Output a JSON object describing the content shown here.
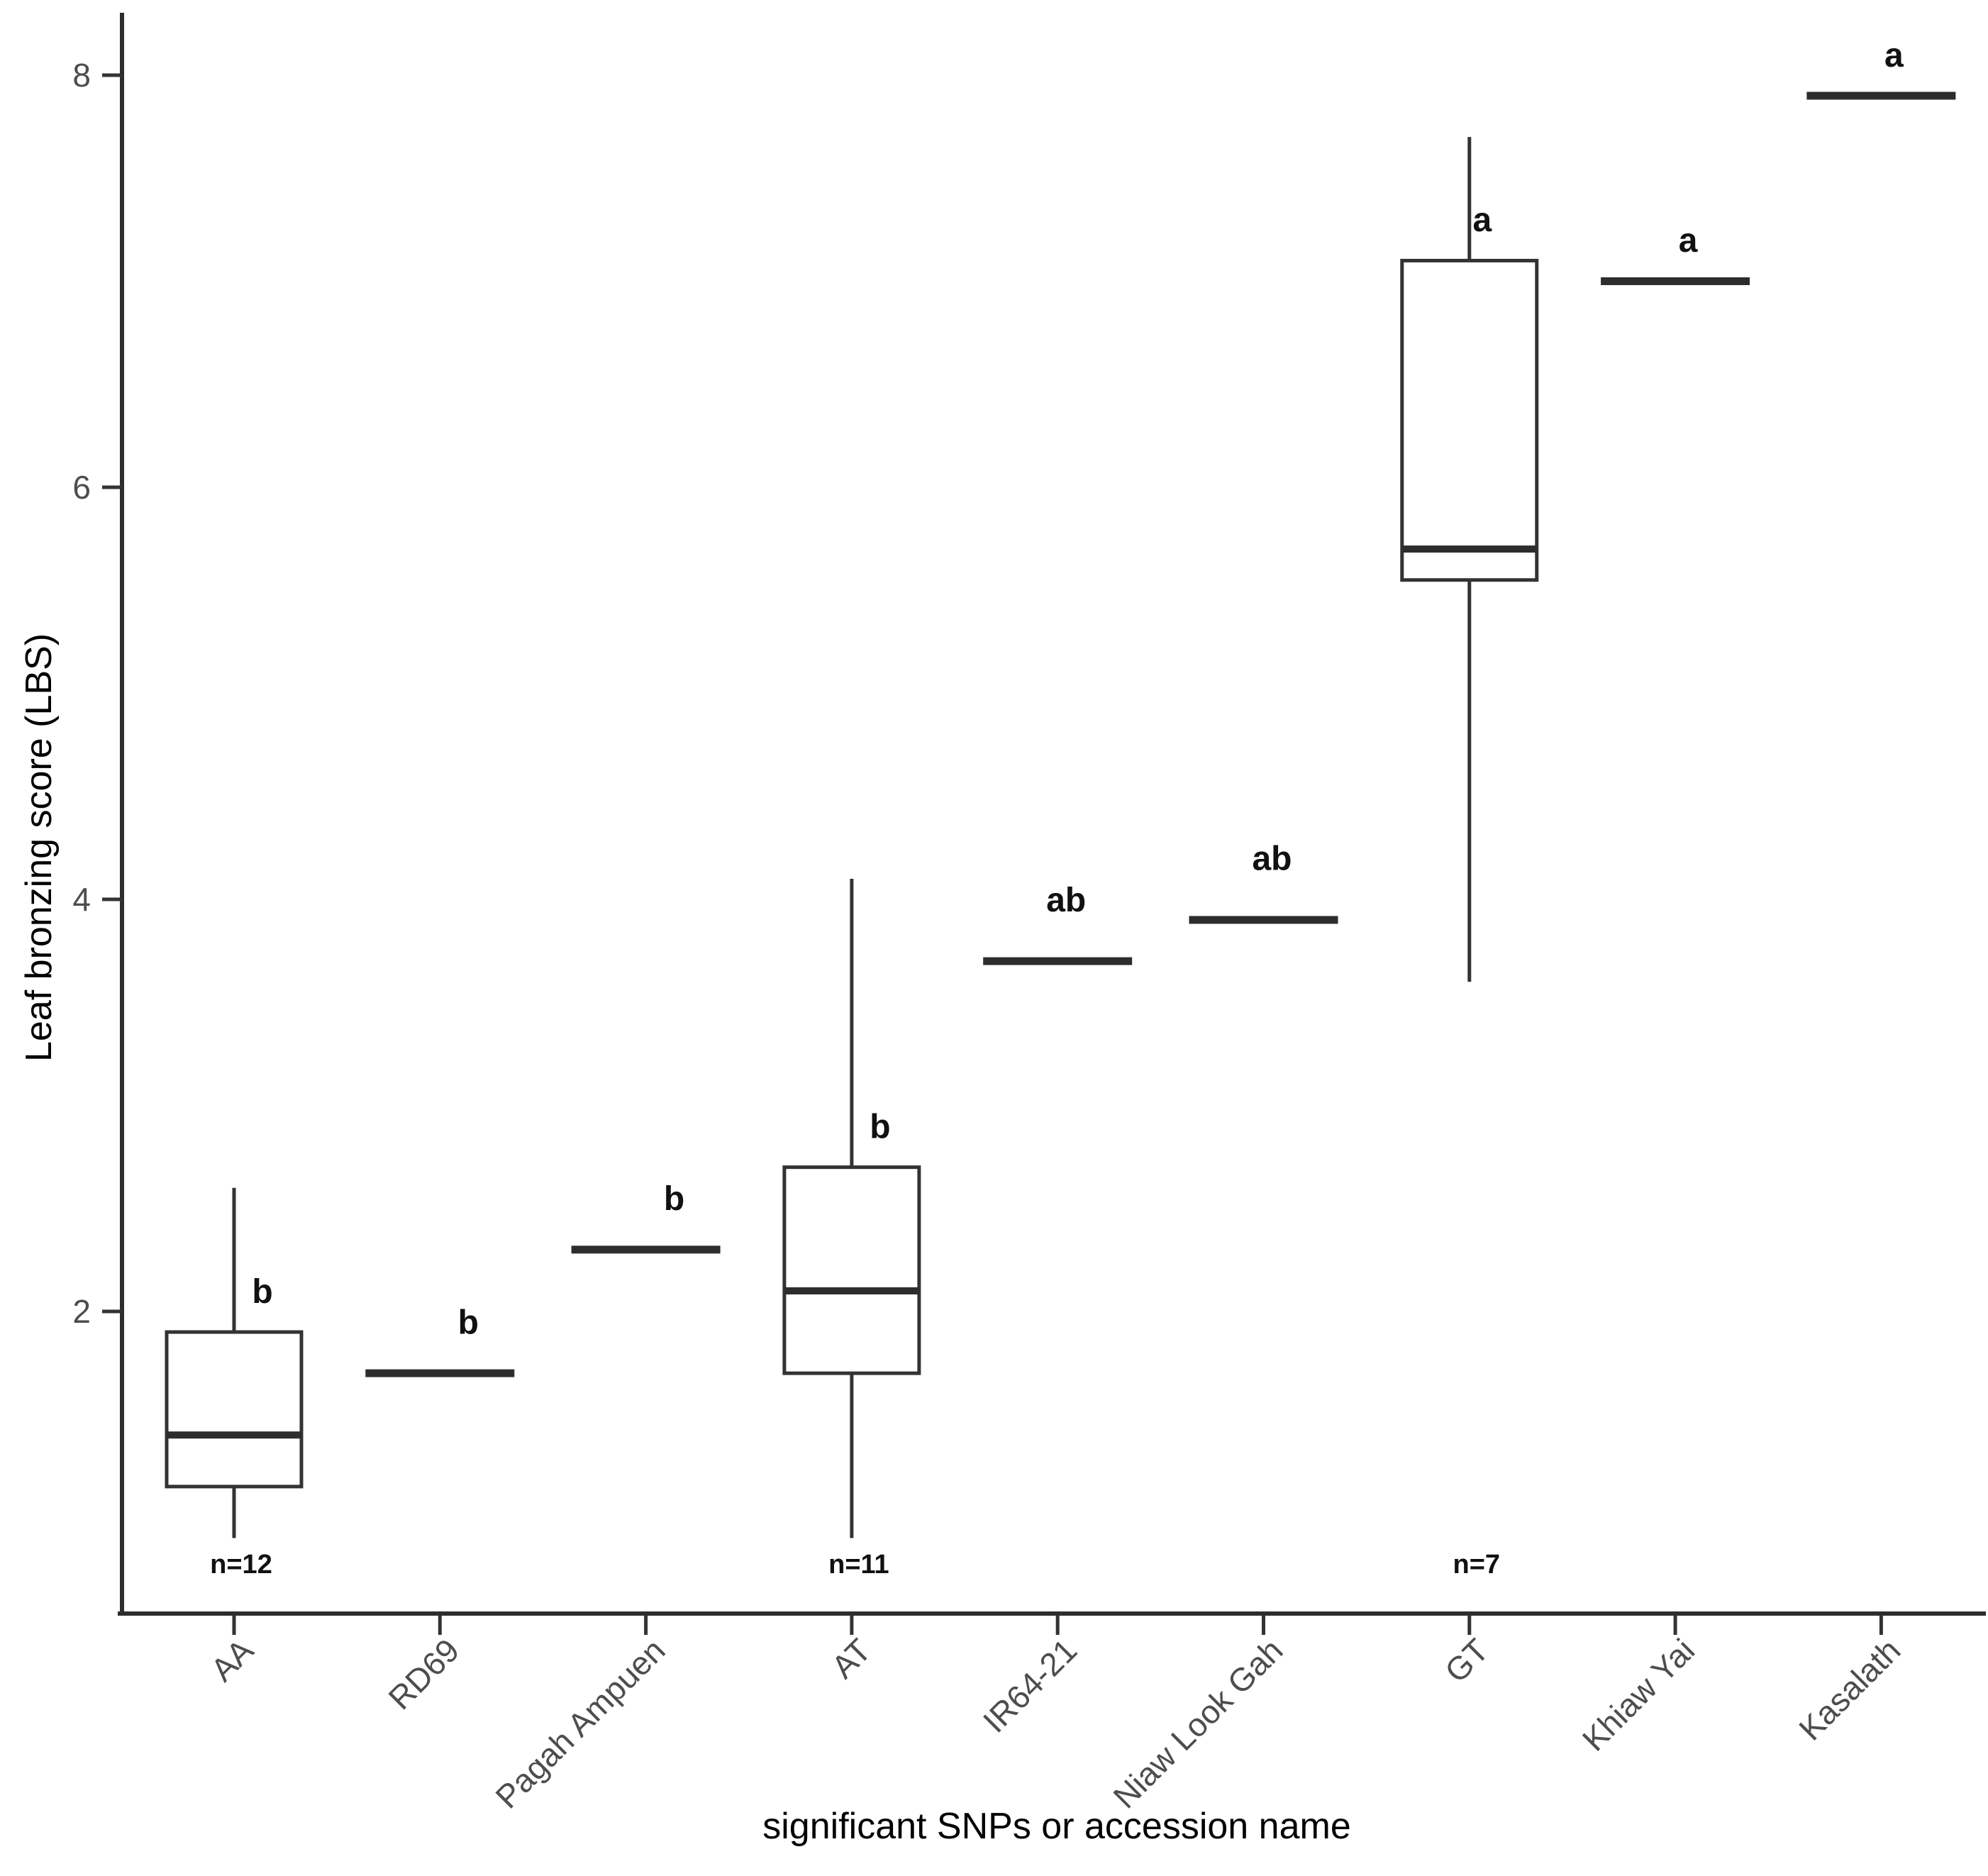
{
  "figure": {
    "background": "#ffffff",
    "y_axis_title": "Leaf bronzing score (LBS)",
    "x_axis_title": "significant SNPs or accession name"
  },
  "colors": {
    "axis_line": "#2d2d2d",
    "tick_mark": "#333333",
    "tick_label": "#4d4d4d",
    "axis_title": "#1f1f1f",
    "box_stroke": "#333333",
    "box_fill": "#ffffff",
    "median_line": "#2d2d2d",
    "sig_letter": "#111111",
    "n_label": "#111111"
  },
  "chart_data": {
    "type": "boxplot",
    "title": "",
    "xlabel": "significant SNPs or accession name",
    "ylabel": "Leaf bronzing score (LBS)",
    "ylim": [
      0.5,
      8.3
    ],
    "yticks": [
      "2",
      "4",
      "6",
      "8"
    ],
    "ytick_values": [
      2,
      4,
      6,
      8
    ],
    "grid": "off",
    "legend": "none",
    "categories": [
      "AA",
      "RD69",
      "Pagah Ampuen",
      "AT",
      "IR64-21",
      "Niaw Look Gah",
      "GT",
      "Khiaw Yai",
      "Kasalath"
    ],
    "groups": [
      {
        "label": "AA",
        "type": "box",
        "min": 0.9,
        "q1": 1.15,
        "median": 1.4,
        "q3": 1.9,
        "max": 2.6,
        "sig_letter": "b",
        "letter_y": 2.1,
        "n_label": "n=12"
      },
      {
        "label": "RD69",
        "type": "median-line",
        "median": 1.7,
        "sig_letter": "b",
        "letter_y": 1.95
      },
      {
        "label": "Pagah Ampuen",
        "type": "median-line",
        "median": 2.3,
        "sig_letter": "b",
        "letter_y": 2.55
      },
      {
        "label": "AT",
        "type": "box",
        "min": 0.9,
        "q1": 1.7,
        "median": 2.1,
        "q3": 2.7,
        "max": 4.1,
        "sig_letter": "b",
        "letter_y": 2.9,
        "n_label": "n=11"
      },
      {
        "label": "IR64-21",
        "type": "median-line",
        "median": 3.7,
        "sig_letter": "ab",
        "letter_y": 4.0
      },
      {
        "label": "Niaw Look Gah",
        "type": "median-line",
        "median": 3.9,
        "sig_letter": "ab",
        "letter_y": 4.2
      },
      {
        "label": "GT",
        "type": "box",
        "min": 3.6,
        "q1": 5.55,
        "median": 5.7,
        "q3": 7.1,
        "max": 7.7,
        "sig_letter": "a",
        "letter_y": 7.3,
        "n_label": "n=7"
      },
      {
        "label": "Khiaw Yai",
        "type": "median-line",
        "median": 7.0,
        "sig_letter": "a",
        "letter_y": 7.2
      },
      {
        "label": "Kasalath",
        "type": "median-line",
        "median": 7.9,
        "sig_letter": "a",
        "letter_y": 8.1
      }
    ]
  }
}
